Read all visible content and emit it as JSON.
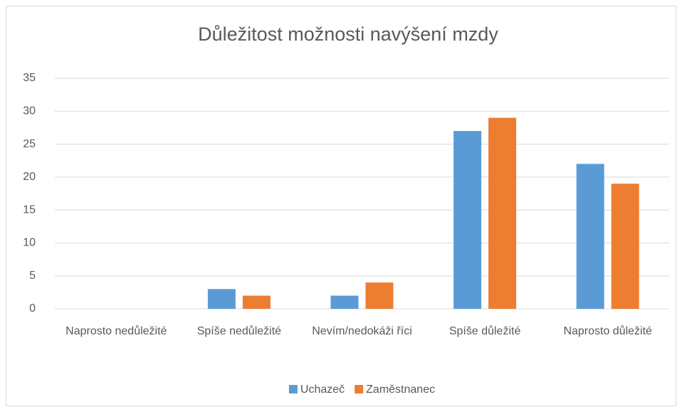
{
  "chart_data": {
    "type": "bar",
    "title": "Důležitost možnosti navýšení mzdy",
    "categories": [
      "Naprosto nedůležité",
      "Spíše nedůležité",
      "Nevím/nedokáži říci",
      "Spíše důležité",
      "Naprosto důležité"
    ],
    "series": [
      {
        "name": "Uchazeč",
        "color": "#5b9bd5",
        "values": [
          0,
          3,
          2,
          27,
          22
        ]
      },
      {
        "name": "Zaměstnanec",
        "color": "#ed7d31",
        "values": [
          0,
          2,
          4,
          29,
          19
        ]
      }
    ],
    "ylim": [
      0,
      35
    ],
    "yticks": [
      0,
      5,
      10,
      15,
      20,
      25,
      30,
      35
    ],
    "grid": true,
    "legend": "bottom"
  }
}
